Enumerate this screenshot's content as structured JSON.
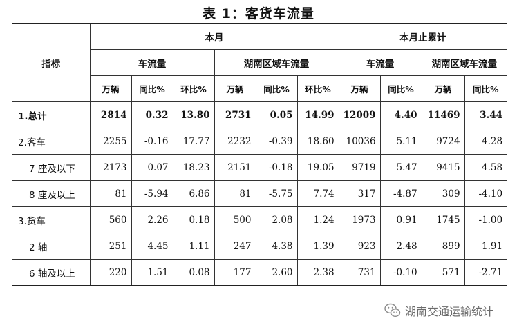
{
  "title": "表 1：客货车流量",
  "header": {
    "indicator": "指标",
    "this_month": "本月",
    "cumulative": "本月止累计",
    "traffic": "车流量",
    "hunan_traffic": "湖南区域车流量",
    "units": {
      "vehicles": "万辆",
      "yoy": "同比%",
      "mom": "环比%"
    }
  },
  "rows": [
    {
      "label": "1.总计",
      "values": [
        "2814",
        "0.32",
        "13.80",
        "2731",
        "0.05",
        "14.99",
        "12009",
        "4.40",
        "11469",
        "3.44"
      ]
    },
    {
      "label": "2.客车",
      "values": [
        "2255",
        "-0.16",
        "17.77",
        "2232",
        "-0.39",
        "18.60",
        "10036",
        "5.11",
        "9724",
        "4.28"
      ]
    },
    {
      "label": "7 座及以下",
      "values": [
        "2173",
        "0.07",
        "18.23",
        "2151",
        "-0.18",
        "19.05",
        "9719",
        "5.47",
        "9415",
        "4.58"
      ]
    },
    {
      "label": "8 座及以上",
      "values": [
        "81",
        "-5.94",
        "6.86",
        "81",
        "-5.75",
        "7.74",
        "317",
        "-4.87",
        "309",
        "-4.10"
      ]
    },
    {
      "label": "3.货车",
      "values": [
        "560",
        "2.26",
        "0.18",
        "500",
        "2.08",
        "1.24",
        "1973",
        "0.91",
        "1745",
        "-1.00"
      ]
    },
    {
      "label": "2 轴",
      "values": [
        "251",
        "4.45",
        "1.11",
        "247",
        "4.38",
        "1.39",
        "923",
        "2.48",
        "899",
        "1.91"
      ]
    },
    {
      "label": "6 轴及以上",
      "values": [
        "220",
        "1.51",
        "0.08",
        "177",
        "2.60",
        "2.38",
        "731",
        "-0.10",
        "571",
        "-2.71"
      ]
    }
  ],
  "watermark": {
    "text": "湖南交通运输统计",
    "icon": "wechat-icon"
  }
}
